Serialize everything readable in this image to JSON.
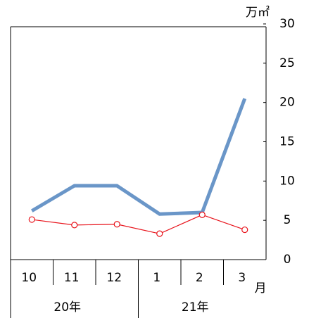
{
  "chart_data": {
    "type": "line",
    "y_unit": "万㎡",
    "x_unit": "月",
    "categories": [
      "10",
      "11",
      "12",
      "1",
      "2",
      "3"
    ],
    "category_groups": [
      "20年",
      "21年"
    ],
    "series": [
      {
        "color": "#6a96c8",
        "values": [
          6.2,
          9.4,
          9.4,
          5.8,
          6.0,
          20.5
        ]
      },
      {
        "color": "#e8141c",
        "values": [
          5.1,
          4.4,
          4.5,
          3.3,
          5.7,
          3.8
        ]
      }
    ],
    "ylim": [
      0,
      30
    ],
    "yticks": [
      0,
      5,
      10,
      15,
      20,
      25,
      30
    ],
    "axis_side": "right"
  }
}
